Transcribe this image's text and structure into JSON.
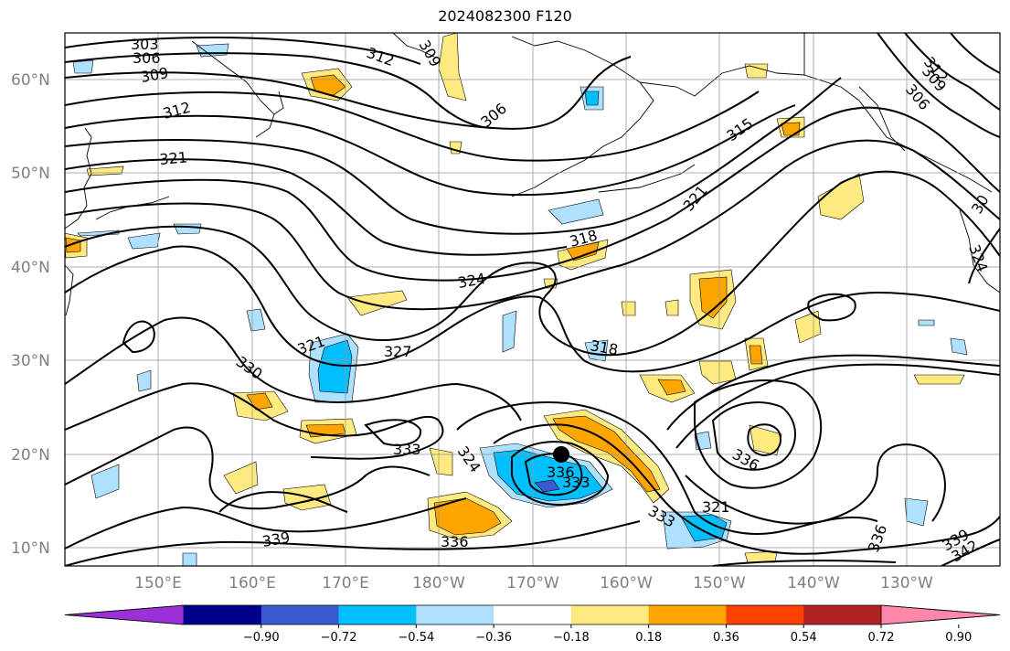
{
  "map": {
    "title": "2024082300 F120",
    "lat_labels": [
      "60°N",
      "50°N",
      "40°N",
      "30°N",
      "20°N",
      "10°N"
    ],
    "lon_labels": [
      "150°E",
      "160°E",
      "170°E",
      "180°W",
      "170°W",
      "160°W",
      "150°W",
      "140°W",
      "130°W"
    ],
    "contour_labels": [
      {
        "text": "303"
      },
      {
        "text": "306"
      },
      {
        "text": "309"
      },
      {
        "text": "312"
      },
      {
        "text": "321"
      },
      {
        "text": "312"
      },
      {
        "text": "309"
      },
      {
        "text": "306"
      },
      {
        "text": "312"
      },
      {
        "text": "309"
      },
      {
        "text": "306"
      },
      {
        "text": "315"
      },
      {
        "text": "321"
      },
      {
        "text": "318"
      },
      {
        "text": "324"
      },
      {
        "text": "327"
      },
      {
        "text": "321"
      },
      {
        "text": "330"
      },
      {
        "text": "318"
      },
      {
        "text": "333"
      },
      {
        "text": "324"
      },
      {
        "text": "336"
      },
      {
        "text": "333"
      },
      {
        "text": "339"
      },
      {
        "text": "336"
      },
      {
        "text": "333"
      },
      {
        "text": "321"
      },
      {
        "text": "336"
      },
      {
        "text": "336"
      },
      {
        "text": "339"
      },
      {
        "text": "342"
      },
      {
        "text": "30"
      },
      {
        "text": "324"
      }
    ],
    "marker": "black-dot"
  },
  "colorbar": {
    "ticks": [
      "−0.90",
      "−0.72",
      "−0.54",
      "−0.36",
      "−0.18",
      "0.18",
      "0.36",
      "0.54",
      "0.72",
      "0.90"
    ],
    "colors": [
      "#9b30d8",
      "#00008b",
      "#3a5bd0",
      "#00bfff",
      "#aee0ff",
      "#ffffff",
      "#ffea80",
      "#ffa500",
      "#ff4000",
      "#b22222",
      "#ff88aa"
    ]
  }
}
